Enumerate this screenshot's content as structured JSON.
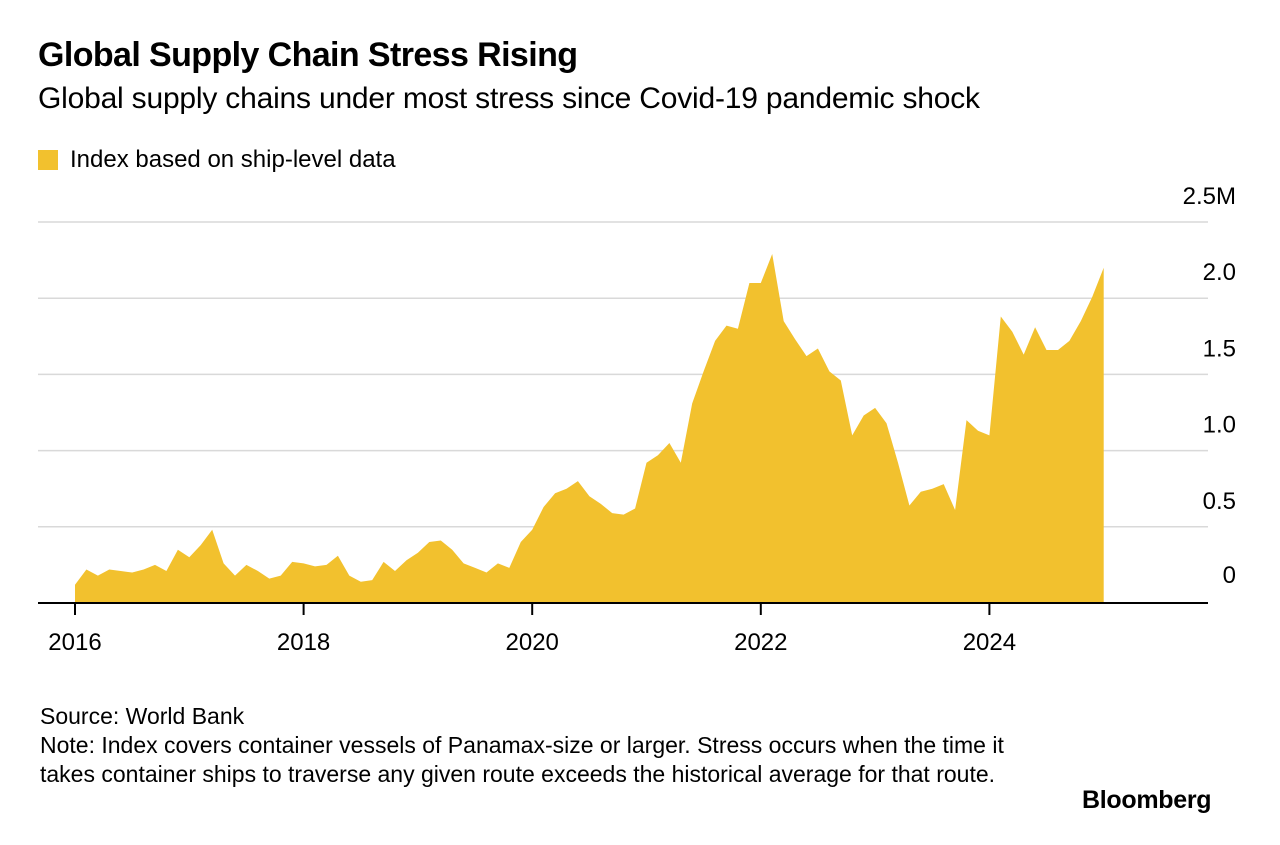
{
  "header": {
    "title": "Global Supply Chain Stress Rising",
    "subtitle": "Global supply chains under most stress since Covid-19 pandemic shock"
  },
  "colors": {
    "series": "#f2c12e",
    "grid": "#d9d9d9",
    "axis": "#000000"
  },
  "chart_data": {
    "type": "area",
    "title": "Global Supply Chain Stress Rising",
    "subtitle": "Global supply chains under most stress since Covid-19 pandemic shock",
    "xlabel": "",
    "ylabel": "",
    "xlim": [
      2016,
      2025.5
    ],
    "ylim": [
      0,
      2.5
    ],
    "x_ticks": [
      2016,
      2018,
      2020,
      2022,
      2024
    ],
    "x_tick_labels": [
      "2016",
      "2018",
      "2020",
      "2022",
      "2024"
    ],
    "y_ticks": [
      0,
      0.5,
      1.0,
      1.5,
      2.0,
      2.5
    ],
    "y_tick_labels": [
      "0",
      "0.5",
      "1.0",
      "1.5",
      "2.0",
      "2.5M"
    ],
    "grid": true,
    "y_axis_side": "right",
    "legend_position": "top-left",
    "series": [
      {
        "name": "Index based on ship-level data",
        "x": [
          2016.0,
          2016.1,
          2016.2,
          2016.3,
          2016.4,
          2016.5,
          2016.6,
          2016.7,
          2016.8,
          2016.9,
          2017.0,
          2017.1,
          2017.2,
          2017.3,
          2017.4,
          2017.5,
          2017.6,
          2017.7,
          2017.8,
          2017.9,
          2018.0,
          2018.1,
          2018.2,
          2018.3,
          2018.4,
          2018.5,
          2018.6,
          2018.7,
          2018.8,
          2018.9,
          2019.0,
          2019.1,
          2019.2,
          2019.3,
          2019.4,
          2019.5,
          2019.6,
          2019.7,
          2019.8,
          2019.9,
          2020.0,
          2020.1,
          2020.2,
          2020.3,
          2020.4,
          2020.5,
          2020.6,
          2020.7,
          2020.8,
          2020.9,
          2021.0,
          2021.1,
          2021.2,
          2021.3,
          2021.4,
          2021.5,
          2021.6,
          2021.7,
          2021.8,
          2021.9,
          2022.0,
          2022.1,
          2022.2,
          2022.3,
          2022.4,
          2022.5,
          2022.6,
          2022.7,
          2022.8,
          2022.9,
          2023.0,
          2023.1,
          2023.2,
          2023.3,
          2023.4,
          2023.5,
          2023.6,
          2023.7,
          2023.8,
          2023.9,
          2024.0,
          2024.1,
          2024.2,
          2024.3,
          2024.4,
          2024.5,
          2024.6,
          2024.7,
          2024.8,
          2024.9,
          2025.0
        ],
        "values": [
          0.12,
          0.22,
          0.18,
          0.22,
          0.21,
          0.2,
          0.22,
          0.25,
          0.21,
          0.35,
          0.3,
          0.38,
          0.48,
          0.26,
          0.18,
          0.25,
          0.21,
          0.16,
          0.18,
          0.27,
          0.26,
          0.24,
          0.25,
          0.31,
          0.18,
          0.14,
          0.15,
          0.27,
          0.21,
          0.28,
          0.33,
          0.4,
          0.41,
          0.35,
          0.26,
          0.23,
          0.2,
          0.26,
          0.23,
          0.4,
          0.48,
          0.63,
          0.72,
          0.75,
          0.8,
          0.7,
          0.65,
          0.59,
          0.58,
          0.62,
          0.92,
          0.97,
          1.05,
          0.92,
          1.31,
          1.52,
          1.72,
          1.82,
          1.8,
          2.1,
          2.1,
          2.29,
          1.85,
          1.73,
          1.62,
          1.67,
          1.52,
          1.46,
          1.1,
          1.23,
          1.28,
          1.18,
          0.92,
          0.64,
          0.73,
          0.75,
          0.78,
          0.61,
          1.2,
          1.13,
          1.1,
          1.88,
          1.78,
          1.63,
          1.81,
          1.66,
          1.66,
          1.72,
          1.85,
          2.01,
          2.2
        ]
      }
    ]
  },
  "footer": {
    "source": "Source: World Bank",
    "note": "Note: Index covers container vessels of Panamax-size or larger. Stress occurs when the time it takes container ships to traverse any given route exceeds the historical average for that route.",
    "brand": "Bloomberg"
  }
}
